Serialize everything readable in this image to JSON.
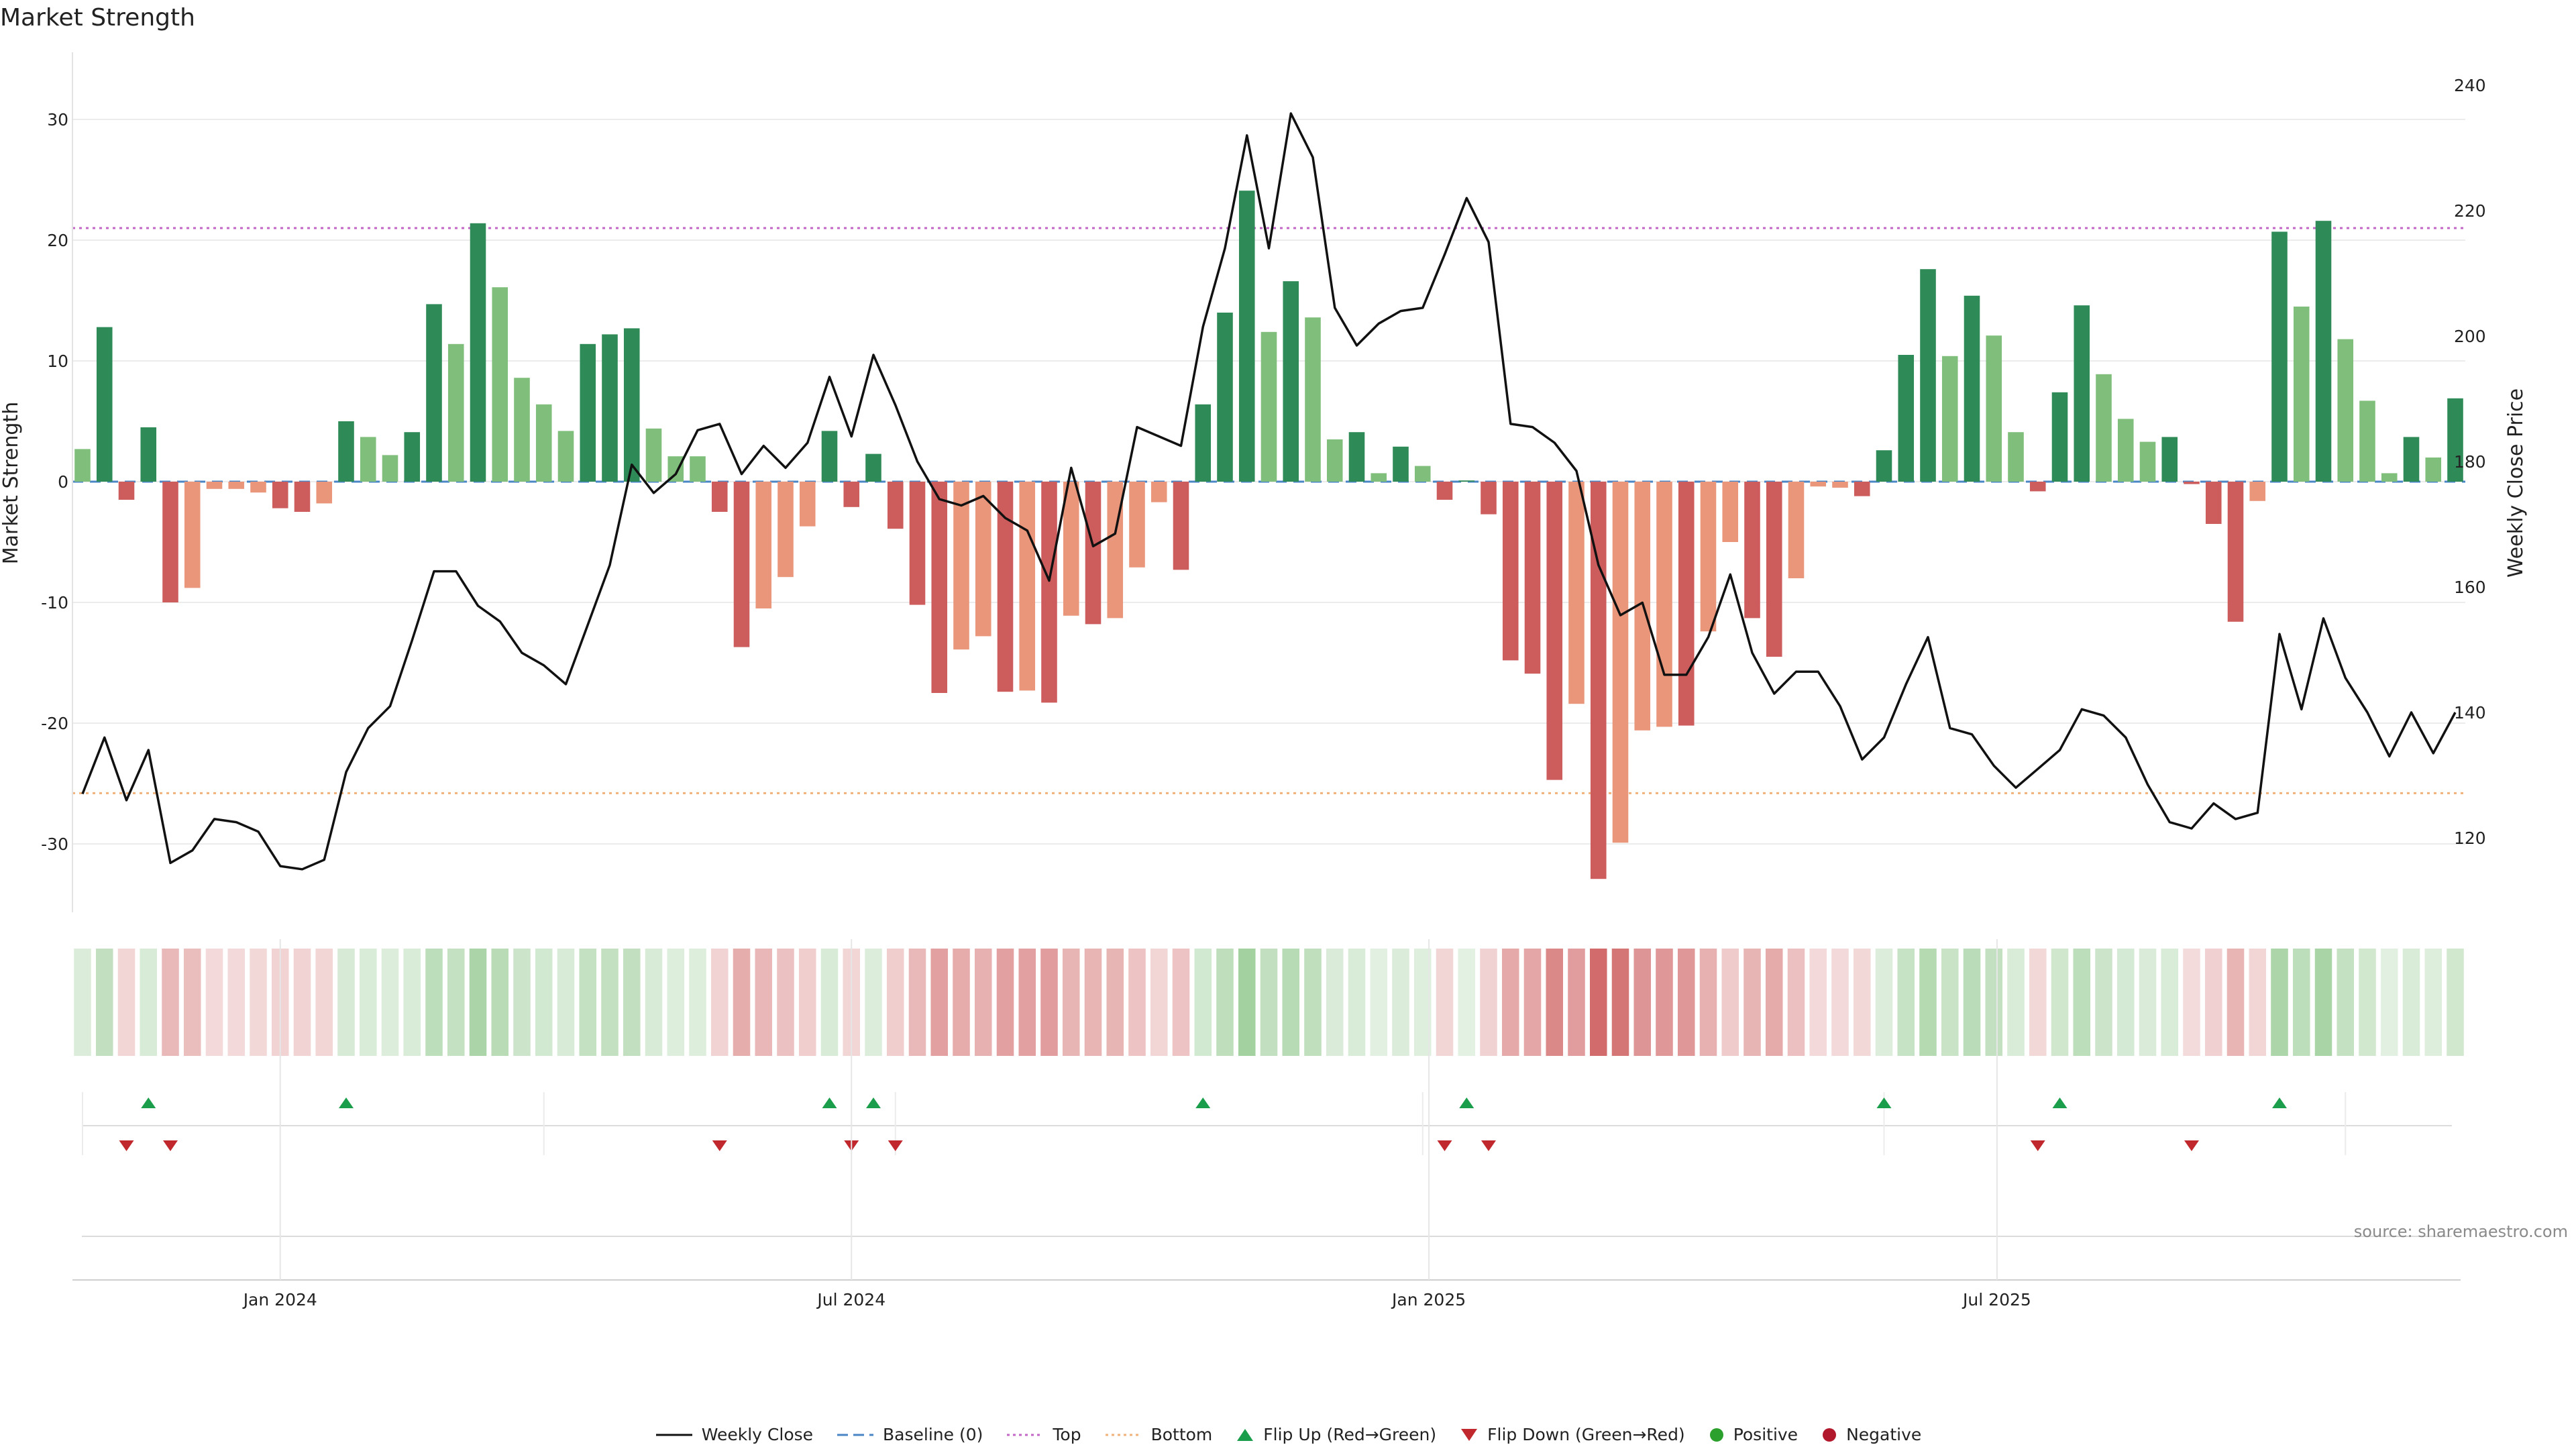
{
  "title": "Market Strength",
  "source": "source: sharemaestro.com",
  "colors": {
    "pos_strong": "#2e8b57",
    "pos_weak": "#7fbf7b",
    "neg_strong": "#cd5c5c",
    "neg_weak": "#e9967a",
    "price_line": "#111111",
    "baseline": "#4a86c5",
    "top": "#c267c6",
    "bottom": "#f0b27a",
    "flip_up": "#1b9e4b",
    "flip_down": "#c0282d",
    "positive_dot": "#2ca02c",
    "negative_dot": "#b2182b"
  },
  "legend": [
    {
      "label": "Weekly Close",
      "icon": "line-solid"
    },
    {
      "label": "Baseline (0)",
      "icon": "line-dashed"
    },
    {
      "label": "Top",
      "icon": "line-dotted-purple"
    },
    {
      "label": "Bottom",
      "icon": "line-dotted-orange"
    },
    {
      "label": "Flip Up (Red→Green)",
      "icon": "triangle-up"
    },
    {
      "label": "Flip Down (Green→Red)",
      "icon": "triangle-down"
    },
    {
      "label": "Positive",
      "icon": "dot-green"
    },
    {
      "label": "Negative",
      "icon": "dot-red"
    }
  ],
  "chart_data": {
    "type": "bar",
    "title": "Market Strength",
    "ylabel_left": "Market Strength",
    "ylabel_right": "Weekly Close Price",
    "ylim_left": [
      -35,
      35
    ],
    "ylim_right": [
      109,
      243
    ],
    "yticks_left": [
      -30,
      -20,
      -10,
      0,
      10,
      20,
      30
    ],
    "yticks_right": [
      120,
      140,
      160,
      180,
      200,
      220,
      240
    ],
    "x_start": "2023-10-30",
    "x_step_days": 7,
    "xticks": [
      {
        "label": "Jan 2024",
        "date": "2024-01-01"
      },
      {
        "label": "Jul 2024",
        "date": "2024-07-01"
      },
      {
        "label": "Jan 2025",
        "date": "2025-01-01"
      },
      {
        "label": "Jul 2025",
        "date": "2025-07-01"
      }
    ],
    "top_line": 21,
    "bottom_line": -25.8,
    "baseline": 0,
    "market_strength": [
      2.7,
      12.8,
      -1.5,
      4.5,
      -10,
      -8.8,
      -0.6,
      -0.6,
      -0.9,
      -2.2,
      -2.5,
      -1.8,
      5,
      3.7,
      2.2,
      4.1,
      14.7,
      11.4,
      21.4,
      16.1,
      8.6,
      6.4,
      4.2,
      11.4,
      12.2,
      12.7,
      4.4,
      2.1,
      2.1,
      -2.5,
      -13.7,
      -10.5,
      -7.9,
      -3.7,
      4.2,
      -2.1,
      2.3,
      -3.9,
      -10.2,
      -17.5,
      -13.9,
      -12.8,
      -17.4,
      -17.3,
      -18.3,
      -11.1,
      -11.8,
      -11.3,
      -7.1,
      -1.7,
      -7.3,
      6.4,
      14,
      24.1,
      12.4,
      16.6,
      13.6,
      3.5,
      4.1,
      0.7,
      2.9,
      1.3,
      -1.5,
      0.1,
      -2.7,
      -14.8,
      -15.9,
      -24.7,
      -18.4,
      -32.9,
      -29.9,
      -20.6,
      -20.3,
      -20.2,
      -12.4,
      -5,
      -11.3,
      -14.5,
      -8,
      -0.4,
      -0.5,
      -1.2,
      2.6,
      10.5,
      17.6,
      10.4,
      15.4,
      12.1,
      4.1,
      -0.8,
      7.4,
      14.6,
      8.9,
      5.2,
      3.3,
      3.7,
      -0.2,
      -3.5,
      -11.6,
      -1.6,
      20.7,
      14.5,
      21.6,
      11.8,
      6.7,
      0.7,
      3.7,
      2,
      6.9
    ],
    "strength_band": [
      "weak",
      "strong",
      "strong",
      "strong",
      "strong",
      "weak",
      "weak",
      "weak",
      "weak",
      "strong",
      "strong",
      "weak",
      "strong",
      "weak",
      "weak",
      "strong",
      "strong",
      "weak",
      "strong",
      "weak",
      "weak",
      "weak",
      "weak",
      "strong",
      "strong",
      "strong",
      "weak",
      "weak",
      "weak",
      "strong",
      "strong",
      "weak",
      "weak",
      "weak",
      "strong",
      "strong",
      "strong",
      "strong",
      "strong",
      "strong",
      "weak",
      "weak",
      "strong",
      "weak",
      "strong",
      "weak",
      "strong",
      "weak",
      "weak",
      "weak",
      "strong",
      "strong",
      "strong",
      "strong",
      "weak",
      "strong",
      "weak",
      "weak",
      "strong",
      "weak",
      "strong",
      "weak",
      "strong",
      "strong",
      "strong",
      "strong",
      "strong",
      "strong",
      "weak",
      "strong",
      "weak",
      "weak",
      "weak",
      "strong",
      "weak",
      "weak",
      "strong",
      "strong",
      "weak",
      "weak",
      "weak",
      "strong",
      "strong",
      "strong",
      "strong",
      "weak",
      "strong",
      "weak",
      "weak",
      "strong",
      "strong",
      "strong",
      "weak",
      "weak",
      "weak",
      "strong",
      "strong",
      "strong",
      "strong",
      "weak",
      "strong",
      "weak",
      "strong",
      "weak",
      "weak",
      "weak",
      "strong",
      "weak",
      "strong"
    ],
    "weekly_close": [
      127,
      136,
      126,
      134,
      116,
      118,
      123,
      122.5,
      121,
      115.5,
      115,
      116.5,
      130.5,
      137.5,
      141,
      151.5,
      162.5,
      162.5,
      157,
      154.5,
      149.5,
      147.5,
      144.5,
      154,
      163.5,
      179.5,
      175,
      178,
      185,
      186,
      178,
      182.5,
      179,
      183,
      193.5,
      184,
      197,
      189,
      180,
      174,
      173,
      174.5,
      171,
      169,
      161,
      179,
      166.5,
      168.5,
      185.5,
      184,
      182.5,
      201.5,
      214,
      232,
      214,
      235.5,
      228.5,
      204.5,
      198.5,
      202,
      204,
      204.5,
      213,
      222,
      215,
      186,
      185.5,
      183,
      178.5,
      163.5,
      155.5,
      157.5,
      146,
      146,
      152,
      162,
      149.5,
      143,
      146.5,
      146.5,
      141,
      132.5,
      136,
      144.5,
      152,
      137.5,
      136.5,
      131.5,
      128,
      131,
      134,
      140.5,
      139.5,
      136,
      128.5,
      122.5,
      121.5,
      125.5,
      123,
      124,
      152.5,
      140.5,
      155,
      145.5,
      140,
      133,
      140,
      133.5,
      140
    ],
    "flip_up_weeks": [
      3,
      12,
      34,
      36,
      51,
      63,
      82,
      90,
      100
    ],
    "flip_down_weeks": [
      2,
      4,
      29,
      35,
      37,
      62,
      64,
      89,
      96
    ]
  }
}
